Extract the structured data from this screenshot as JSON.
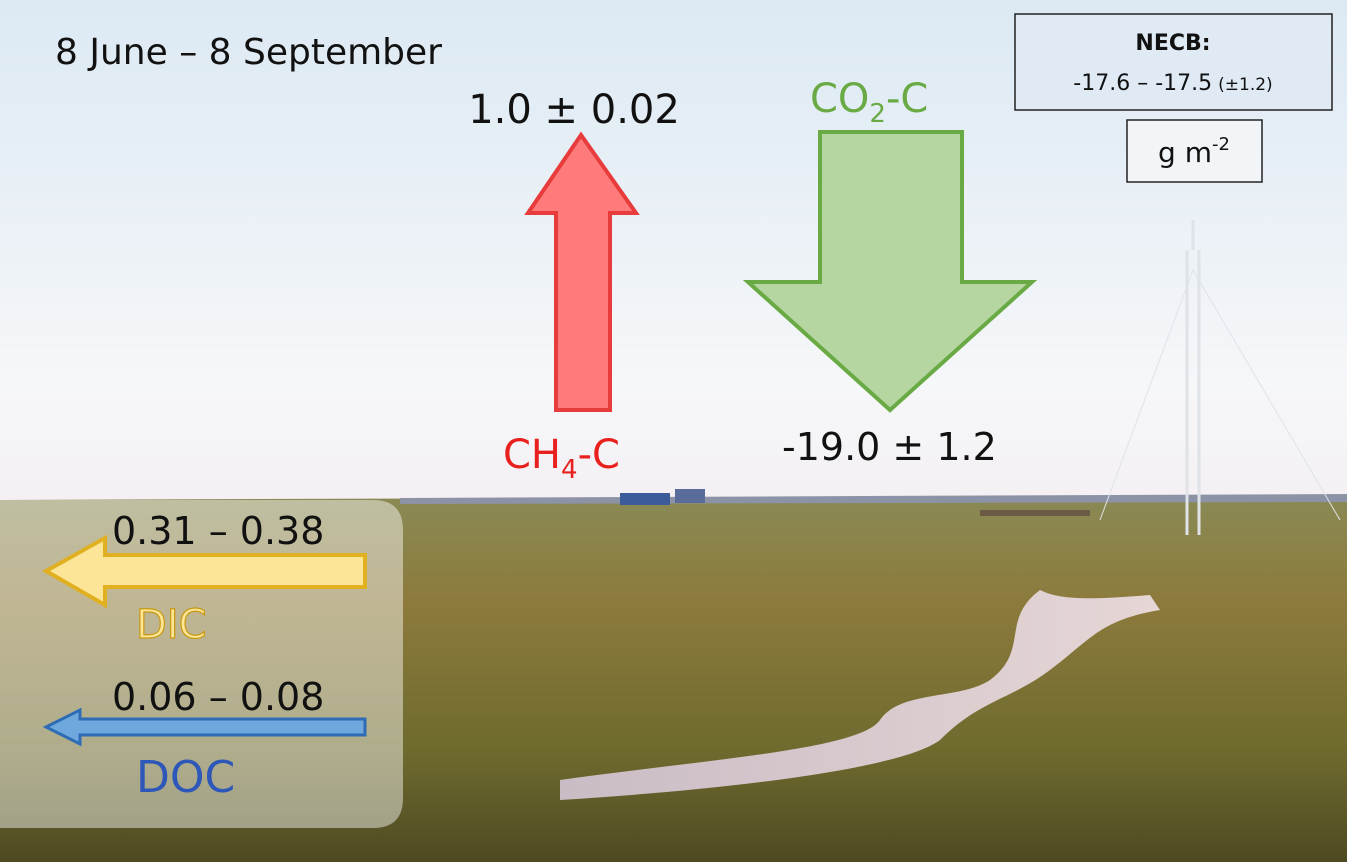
{
  "period": "8 June – 8 September",
  "ch4": {
    "flux": "1.0 ± 0.02",
    "label": [
      "CH",
      "4",
      "-C"
    ]
  },
  "co2": {
    "flux": "-19.0 ± 1.2",
    "label": [
      "CO",
      "2",
      "-C"
    ]
  },
  "necb": {
    "title": "NECB:",
    "range": "-17.6 – -17.5",
    "uncertainty": "(±1.2)"
  },
  "unit": [
    "g m",
    "-2"
  ],
  "dic": {
    "flux": "0.31 – 0.38",
    "label": "DIC"
  },
  "doc": {
    "flux": "0.06 – 0.08",
    "label": "DOC"
  }
}
